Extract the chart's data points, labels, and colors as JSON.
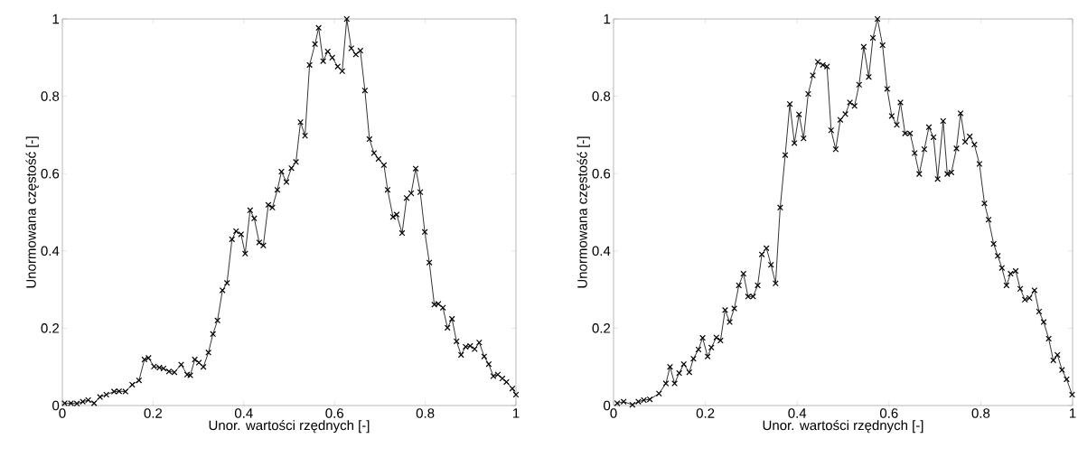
{
  "chart_data": [
    {
      "type": "line",
      "xlabel": "Unor. wartości rzędnych  [-]",
      "ylabel": "Unormowana częstość  [-]",
      "color": "#000000",
      "marker": "cross",
      "xlim": [
        0,
        1
      ],
      "ylim": [
        0,
        1
      ],
      "xticks": [
        0,
        0.2,
        0.4,
        0.6,
        0.8,
        1
      ],
      "yticks": [
        0,
        0.2,
        0.4,
        0.6,
        0.8,
        1
      ],
      "x": [
        0.005,
        0.019,
        0.032,
        0.045,
        0.057,
        0.07,
        0.083,
        0.097,
        0.114,
        0.125,
        0.139,
        0.154,
        0.169,
        0.181,
        0.19,
        0.202,
        0.214,
        0.223,
        0.235,
        0.247,
        0.262,
        0.275,
        0.282,
        0.292,
        0.301,
        0.311,
        0.322,
        0.332,
        0.342,
        0.353,
        0.363,
        0.374,
        0.383,
        0.394,
        0.403,
        0.414,
        0.423,
        0.434,
        0.443,
        0.454,
        0.463,
        0.474,
        0.483,
        0.494,
        0.505,
        0.515,
        0.525,
        0.535,
        0.545,
        0.557,
        0.565,
        0.575,
        0.585,
        0.595,
        0.607,
        0.617,
        0.627,
        0.637,
        0.647,
        0.657,
        0.667,
        0.677,
        0.687,
        0.697,
        0.709,
        0.717,
        0.729,
        0.737,
        0.749,
        0.759,
        0.769,
        0.779,
        0.789,
        0.799,
        0.809,
        0.82,
        0.829,
        0.839,
        0.849,
        0.859,
        0.869,
        0.879,
        0.889,
        0.899,
        0.909,
        0.919,
        0.93,
        0.94,
        0.95,
        0.96,
        0.97,
        0.979,
        0.992,
        1.0
      ],
      "values": [
        0.006,
        0.006,
        0.005,
        0.01,
        0.014,
        0.006,
        0.022,
        0.028,
        0.036,
        0.037,
        0.036,
        0.054,
        0.065,
        0.119,
        0.123,
        0.101,
        0.098,
        0.096,
        0.088,
        0.086,
        0.106,
        0.08,
        0.078,
        0.119,
        0.111,
        0.1,
        0.137,
        0.185,
        0.22,
        0.298,
        0.317,
        0.43,
        0.451,
        0.443,
        0.393,
        0.505,
        0.484,
        0.422,
        0.414,
        0.519,
        0.512,
        0.558,
        0.605,
        0.578,
        0.614,
        0.63,
        0.733,
        0.698,
        0.881,
        0.935,
        0.977,
        0.891,
        0.916,
        0.9,
        0.877,
        0.865,
        1.0,
        0.924,
        0.908,
        0.918,
        0.815,
        0.689,
        0.653,
        0.638,
        0.622,
        0.558,
        0.488,
        0.494,
        0.446,
        0.537,
        0.549,
        0.613,
        0.552,
        0.449,
        0.37,
        0.261,
        0.263,
        0.253,
        0.201,
        0.224,
        0.166,
        0.131,
        0.152,
        0.154,
        0.146,
        0.163,
        0.127,
        0.107,
        0.076,
        0.08,
        0.07,
        0.061,
        0.044,
        0.028
      ]
    },
    {
      "type": "line",
      "xlabel": "Unor. wartości rzędnych  [-]",
      "ylabel": "Unormowana częstość  [-]",
      "color": "#000000",
      "marker": "cross",
      "xlim": [
        0,
        1
      ],
      "ylim": [
        0,
        1
      ],
      "xticks": [
        0,
        0.2,
        0.4,
        0.6,
        0.8,
        1
      ],
      "yticks": [
        0,
        0.2,
        0.4,
        0.6,
        0.8,
        1
      ],
      "x": [
        0.008,
        0.022,
        0.041,
        0.054,
        0.066,
        0.079,
        0.099,
        0.114,
        0.123,
        0.133,
        0.143,
        0.153,
        0.165,
        0.174,
        0.185,
        0.194,
        0.205,
        0.213,
        0.224,
        0.233,
        0.243,
        0.253,
        0.263,
        0.273,
        0.283,
        0.293,
        0.304,
        0.314,
        0.323,
        0.333,
        0.343,
        0.353,
        0.363,
        0.374,
        0.384,
        0.394,
        0.404,
        0.414,
        0.424,
        0.434,
        0.445,
        0.456,
        0.465,
        0.474,
        0.484,
        0.494,
        0.505,
        0.515,
        0.525,
        0.535,
        0.545,
        0.556,
        0.565,
        0.575,
        0.586,
        0.596,
        0.606,
        0.617,
        0.625,
        0.635,
        0.646,
        0.656,
        0.666,
        0.677,
        0.687,
        0.697,
        0.706,
        0.718,
        0.727,
        0.736,
        0.747,
        0.756,
        0.766,
        0.776,
        0.786,
        0.797,
        0.808,
        0.817,
        0.828,
        0.837,
        0.846,
        0.856,
        0.865,
        0.876,
        0.886,
        0.896,
        0.906,
        0.917,
        0.927,
        0.937,
        0.948,
        0.958,
        0.967,
        0.977,
        0.987,
        0.999
      ],
      "values": [
        0.006,
        0.01,
        0.002,
        0.01,
        0.014,
        0.016,
        0.031,
        0.057,
        0.1,
        0.057,
        0.084,
        0.107,
        0.086,
        0.121,
        0.145,
        0.175,
        0.127,
        0.15,
        0.176,
        0.168,
        0.247,
        0.216,
        0.251,
        0.311,
        0.341,
        0.282,
        0.282,
        0.311,
        0.391,
        0.407,
        0.364,
        0.316,
        0.512,
        0.648,
        0.78,
        0.679,
        0.753,
        0.691,
        0.806,
        0.854,
        0.889,
        0.881,
        0.877,
        0.712,
        0.663,
        0.739,
        0.754,
        0.784,
        0.775,
        0.83,
        0.928,
        0.85,
        0.951,
        1.0,
        0.932,
        0.819,
        0.749,
        0.726,
        0.784,
        0.704,
        0.704,
        0.653,
        0.599,
        0.663,
        0.72,
        0.694,
        0.586,
        0.736,
        0.599,
        0.603,
        0.665,
        0.756,
        0.682,
        0.696,
        0.675,
        0.625,
        0.523,
        0.481,
        0.418,
        0.387,
        0.356,
        0.311,
        0.341,
        0.348,
        0.302,
        0.274,
        0.278,
        0.298,
        0.243,
        0.216,
        0.173,
        0.117,
        0.131,
        0.092,
        0.068,
        0.028
      ]
    }
  ]
}
